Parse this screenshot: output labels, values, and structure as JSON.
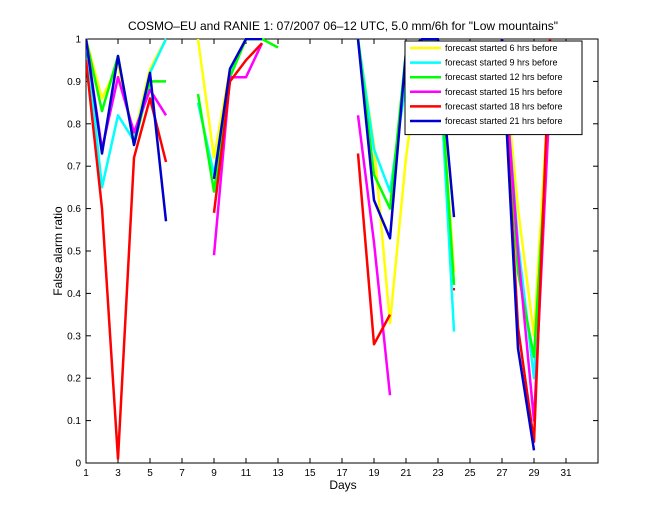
{
  "chart_data": {
    "type": "line",
    "title": "COSMO–EU and RANIE 1: 07/2007 06–12 UTC, 5.0 mm/6h for \"Low mountains\"",
    "xlabel": "Days",
    "ylabel": "False alarm ratio",
    "xlim": [
      1,
      33
    ],
    "ylim": [
      0,
      1
    ],
    "xticks": [
      1,
      3,
      5,
      7,
      9,
      11,
      13,
      15,
      17,
      19,
      21,
      23,
      25,
      27,
      29,
      31
    ],
    "yticks": [
      0,
      0.1,
      0.2,
      0.3,
      0.4,
      0.5,
      0.6,
      0.7,
      0.8,
      0.9,
      1
    ],
    "xtick_labels": [
      "1",
      "3",
      "5",
      "7",
      "9",
      "11",
      "13",
      "15",
      "17",
      "19",
      "21",
      "23",
      "25",
      "27",
      "29",
      "31"
    ],
    "ytick_labels": [
      "0",
      "0.1",
      "0.2",
      "0.3",
      "0.4",
      "0.5",
      "0.6",
      "0.7",
      "0.8",
      "0.9",
      "1"
    ],
    "legend_position": "top-right",
    "grid": false,
    "series": [
      {
        "name": "forecast started 6 hrs before",
        "color": "#ffff00",
        "segments": [
          [
            [
              1,
              1
            ],
            [
              2,
              0.86
            ],
            [
              3,
              0.94
            ],
            [
              4,
              0.77
            ],
            [
              5,
              0.93
            ],
            [
              6,
              1
            ]
          ],
          [
            [
              8,
              1
            ],
            [
              9,
              0.72
            ],
            [
              10,
              0.93
            ],
            [
              11,
              1
            ],
            [
              12,
              1
            ]
          ],
          [
            [
              18,
              1
            ],
            [
              19,
              0.75
            ],
            [
              20,
              0.33
            ],
            [
              21,
              0.72
            ],
            [
              22,
              1
            ],
            [
              23,
              1
            ],
            [
              24,
              0.45
            ]
          ],
          [
            [
              27,
              1
            ],
            [
              28,
              0.6
            ],
            [
              29,
              0.3
            ],
            [
              30,
              0.93
            ]
          ]
        ]
      },
      {
        "name": "forecast started 9 hrs before",
        "color": "#00ffff",
        "segments": [
          [
            [
              1,
              1
            ],
            [
              2,
              0.65
            ],
            [
              3,
              0.82
            ],
            [
              4,
              0.76
            ],
            [
              5,
              0.92
            ],
            [
              6,
              1
            ]
          ],
          [
            [
              8,
              0.85
            ],
            [
              9,
              0.68
            ],
            [
              10,
              0.92
            ],
            [
              11,
              1
            ],
            [
              12,
              1
            ]
          ],
          [
            [
              18,
              1
            ],
            [
              19,
              0.74
            ],
            [
              20,
              0.64
            ],
            [
              21,
              0.9
            ],
            [
              22,
              1
            ],
            [
              23,
              1
            ],
            [
              24,
              0.31
            ]
          ],
          [
            [
              27,
              1
            ],
            [
              28,
              0.52
            ],
            [
              29,
              0.2
            ],
            [
              30,
              0.88
            ]
          ]
        ]
      },
      {
        "name": "forecast started 12 hrs before",
        "color": "#00ff00",
        "segments": [
          [
            [
              1,
              1
            ],
            [
              2,
              0.83
            ],
            [
              3,
              0.96
            ],
            [
              4,
              0.75
            ],
            [
              5,
              0.9
            ],
            [
              6,
              0.9
            ]
          ],
          [
            [
              8,
              0.87
            ],
            [
              9,
              0.64
            ],
            [
              10,
              0.91
            ],
            [
              11,
              1
            ],
            [
              12,
              1
            ],
            [
              13,
              0.98
            ]
          ],
          [
            [
              18,
              1
            ],
            [
              19,
              0.68
            ],
            [
              20,
              0.6
            ],
            [
              21,
              0.97
            ],
            [
              22,
              1
            ],
            [
              23,
              1
            ],
            [
              24,
              0.42
            ]
          ],
          [
            [
              27,
              1
            ],
            [
              28,
              0.45
            ],
            [
              29,
              0.25
            ],
            [
              30,
              0.87
            ]
          ]
        ]
      },
      {
        "name": "forecast started 15 hrs before",
        "color": "#ff00ff",
        "segments": [
          [
            [
              1,
              1
            ],
            [
              2,
              0.74
            ],
            [
              3,
              0.91
            ],
            [
              4,
              0.78
            ],
            [
              5,
              0.88
            ],
            [
              6,
              0.82
            ]
          ],
          [
            [
              9,
              0.49
            ],
            [
              10,
              0.91
            ],
            [
              11,
              0.91
            ],
            [
              12,
              0.99
            ]
          ],
          [
            [
              18,
              0.82
            ],
            [
              19,
              0.52
            ],
            [
              20,
              0.16
            ]
          ],
          [
            [
              27,
              1
            ],
            [
              28,
              0.5
            ],
            [
              29,
              0.1
            ],
            [
              30,
              0.87
            ]
          ]
        ]
      },
      {
        "name": "forecast started 18 hrs before",
        "color": "#ff0000",
        "segments": [
          [
            [
              1,
              0.95
            ],
            [
              2,
              0.6
            ],
            [
              3,
              0.01
            ],
            [
              4,
              0.72
            ],
            [
              5,
              0.86
            ],
            [
              6,
              0.71
            ]
          ],
          [
            [
              9,
              0.59
            ],
            [
              10,
              0.9
            ],
            [
              11,
              0.95
            ],
            [
              12,
              0.99
            ]
          ],
          [
            [
              18,
              0.73
            ],
            [
              19,
              0.28
            ],
            [
              20,
              0.35
            ]
          ],
          [
            [
              24,
              0.41
            ]
          ],
          [
            [
              27,
              1
            ],
            [
              28,
              0.32
            ],
            [
              29,
              0.05
            ],
            [
              30,
              1
            ]
          ]
        ]
      },
      {
        "name": "forecast started 21 hrs before",
        "color": "#0000cc",
        "segments": [
          [
            [
              1,
              1
            ],
            [
              2,
              0.73
            ],
            [
              3,
              0.96
            ],
            [
              4,
              0.75
            ],
            [
              5,
              0.92
            ],
            [
              6,
              0.57
            ]
          ],
          [
            [
              9,
              0.67
            ],
            [
              10,
              0.93
            ],
            [
              11,
              1
            ],
            [
              12,
              1
            ]
          ],
          [
            [
              18,
              1
            ],
            [
              19,
              0.62
            ],
            [
              20,
              0.53
            ],
            [
              21,
              0.97
            ],
            [
              22,
              1
            ],
            [
              23,
              1
            ],
            [
              24,
              0.58
            ]
          ],
          [
            [
              27,
              1
            ],
            [
              28,
              0.27
            ],
            [
              29,
              0.03
            ]
          ]
        ]
      }
    ]
  }
}
